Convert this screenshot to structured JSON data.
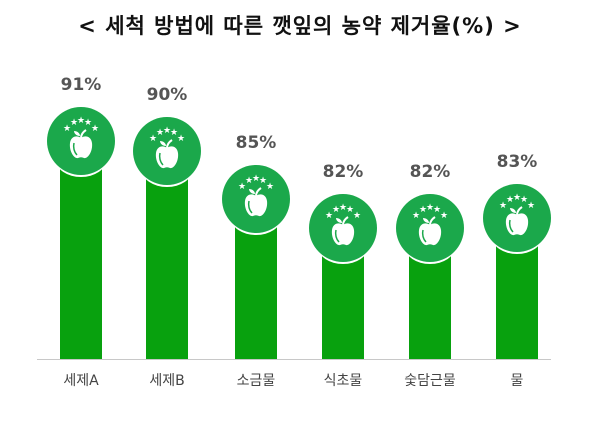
{
  "title": "< 세척 방법에 따른 깻잎의 농약 제거율(%) >",
  "colors": {
    "bar": "#08a10e",
    "badge": "#1ba84b",
    "label": "#555555"
  },
  "chart_data": {
    "type": "bar",
    "title": "< 세척 방법에 따른 깻잎의 농약 제거율(%) >",
    "categories": [
      "세제A",
      "세제B",
      "소금물",
      "식초물",
      "숯담근물",
      "물"
    ],
    "values": [
      91,
      90,
      85,
      82,
      82,
      83
    ],
    "value_labels": [
      "91%",
      "90%",
      "85%",
      "82%",
      "82%",
      "83%"
    ],
    "xlabel": "",
    "ylabel": "",
    "unit": "%",
    "grid": false,
    "legend": "none",
    "decorations": "green circular badge with apple and five stars atop each bar"
  },
  "bars": [
    {
      "label": "세제A",
      "pct": "91%"
    },
    {
      "label": "세제B",
      "pct": "90%"
    },
    {
      "label": "소금물",
      "pct": "85%"
    },
    {
      "label": "식초물",
      "pct": "82%"
    },
    {
      "label": "숯담근물",
      "pct": "82%"
    },
    {
      "label": "물",
      "pct": "83%"
    }
  ]
}
